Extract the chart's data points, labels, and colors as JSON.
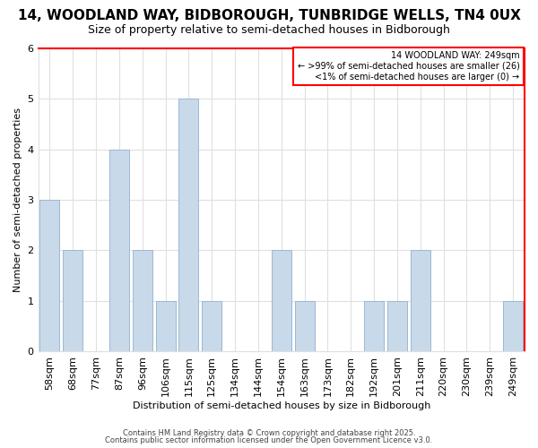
{
  "title": "14, WOODLAND WAY, BIDBOROUGH, TUNBRIDGE WELLS, TN4 0UX",
  "subtitle": "Size of property relative to semi-detached houses in Bidborough",
  "xlabel": "Distribution of semi-detached houses by size in Bidborough",
  "ylabel": "Number of semi-detached properties",
  "categories": [
    "58sqm",
    "68sqm",
    "77sqm",
    "87sqm",
    "96sqm",
    "106sqm",
    "115sqm",
    "125sqm",
    "134sqm",
    "144sqm",
    "154sqm",
    "163sqm",
    "173sqm",
    "182sqm",
    "192sqm",
    "201sqm",
    "211sqm",
    "220sqm",
    "230sqm",
    "239sqm",
    "249sqm"
  ],
  "values": [
    3,
    2,
    0,
    4,
    2,
    1,
    5,
    1,
    0,
    0,
    2,
    1,
    0,
    0,
    1,
    1,
    2,
    0,
    0,
    0,
    1
  ],
  "bar_color": "#c8d9ea",
  "bar_edge_color": "#9ab8d4",
  "ylim": [
    0,
    6
  ],
  "yticks": [
    0,
    1,
    2,
    3,
    4,
    5,
    6
  ],
  "legend_title": "14 WOODLAND WAY: 249sqm",
  "legend_line1": "← >99% of semi-detached houses are smaller (26)",
  "legend_line2": "<1% of semi-detached houses are larger (0) →",
  "background_color": "#ffffff",
  "grid_color": "#e0e0e0",
  "footer1": "Contains HM Land Registry data © Crown copyright and database right 2025.",
  "footer2": "Contains public sector information licensed under the Open Government Licence v3.0.",
  "title_fontsize": 11,
  "subtitle_fontsize": 9,
  "axis_label_fontsize": 8,
  "tick_fontsize": 8,
  "footer_fontsize": 6
}
